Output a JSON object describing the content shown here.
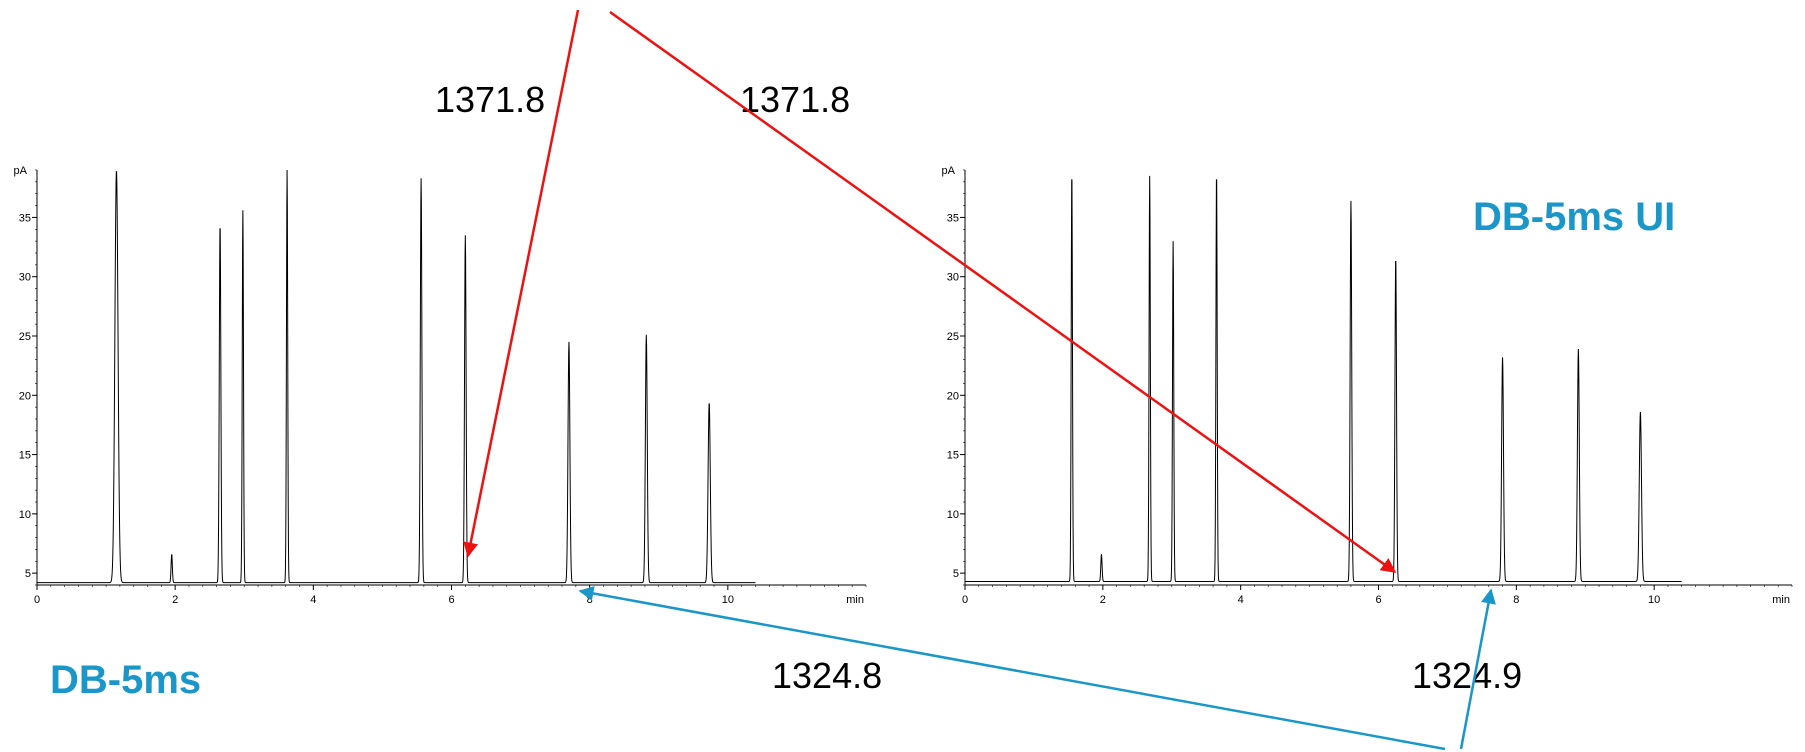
{
  "colors": {
    "trace": "#000000",
    "red_arrow": "#ee1111",
    "blue_arrow": "#1a96c8",
    "title_blue": "#1a96c8"
  },
  "chart_data": [
    {
      "type": "line",
      "title": "DB-5ms",
      "xlabel": "min",
      "ylabel": "pA",
      "xlim": [
        0,
        12
      ],
      "ylim": [
        4,
        39
      ],
      "x_ticks": [
        0,
        2,
        4,
        6,
        8,
        10
      ],
      "y_ticks": [
        5,
        10,
        15,
        20,
        25,
        30,
        35
      ],
      "x_tick_labels": [
        "0",
        "2",
        "4",
        "6",
        "8",
        "10"
      ],
      "y_tick_labels": [
        "5",
        "10",
        "15",
        "20",
        "25",
        "30",
        "35"
      ],
      "grid": false,
      "baseline": 4.2,
      "trace_end_x": 10.4,
      "series": [
        {
          "peaks": [
            {
              "x": 1.15,
              "height": 39.0,
              "width": 0.05
            },
            {
              "x": 1.95,
              "height": 6.6,
              "width": 0.02
            },
            {
              "x": 2.65,
              "height": 34.5,
              "width": 0.025
            },
            {
              "x": 2.98,
              "height": 35.6,
              "width": 0.02
            },
            {
              "x": 3.62,
              "height": 39.0,
              "width": 0.02
            },
            {
              "x": 5.56,
              "height": 38.3,
              "width": 0.025
            },
            {
              "x": 6.2,
              "height": 33.5,
              "width": 0.025
            },
            {
              "x": 7.7,
              "height": 24.5,
              "width": 0.03
            },
            {
              "x": 8.82,
              "height": 25.1,
              "width": 0.03
            },
            {
              "x": 9.73,
              "height": 19.4,
              "width": 0.035
            }
          ]
        }
      ],
      "annotations": [
        {
          "text": "1371.8",
          "x": 6.2,
          "arrow_color": "red"
        },
        {
          "text": "1324.8",
          "x": 7.8,
          "arrow_color": "blue"
        }
      ]
    },
    {
      "type": "line",
      "title": "DB-5ms UI",
      "xlabel": "min",
      "ylabel": "pA",
      "xlim": [
        0,
        12
      ],
      "ylim": [
        4,
        39
      ],
      "x_ticks": [
        0,
        2,
        4,
        6,
        8,
        10
      ],
      "y_ticks": [
        5,
        10,
        15,
        20,
        25,
        30,
        35
      ],
      "x_tick_labels": [
        "0",
        "2",
        "4",
        "6",
        "8",
        "10"
      ],
      "y_tick_labels": [
        "5",
        "10",
        "15",
        "20",
        "25",
        "30",
        "35"
      ],
      "grid": false,
      "baseline": 4.3,
      "trace_end_x": 10.4,
      "series": [
        {
          "peaks": [
            {
              "x": 1.55,
              "height": 39.0,
              "width": 0.02
            },
            {
              "x": 1.98,
              "height": 6.6,
              "width": 0.02
            },
            {
              "x": 2.68,
              "height": 38.5,
              "width": 0.02
            },
            {
              "x": 3.02,
              "height": 33.0,
              "width": 0.02
            },
            {
              "x": 3.65,
              "height": 39.0,
              "width": 0.02
            },
            {
              "x": 5.6,
              "height": 36.4,
              "width": 0.025
            },
            {
              "x": 6.25,
              "height": 31.7,
              "width": 0.025
            },
            {
              "x": 7.8,
              "height": 23.2,
              "width": 0.03
            },
            {
              "x": 8.9,
              "height": 23.9,
              "width": 0.03
            },
            {
              "x": 9.8,
              "height": 18.6,
              "width": 0.035
            }
          ]
        }
      ],
      "annotations": [
        {
          "text": "1371.8",
          "x": 6.25,
          "arrow_color": "red"
        },
        {
          "text": "1324.9",
          "x": 7.6,
          "arrow_color": "blue"
        }
      ]
    }
  ]
}
